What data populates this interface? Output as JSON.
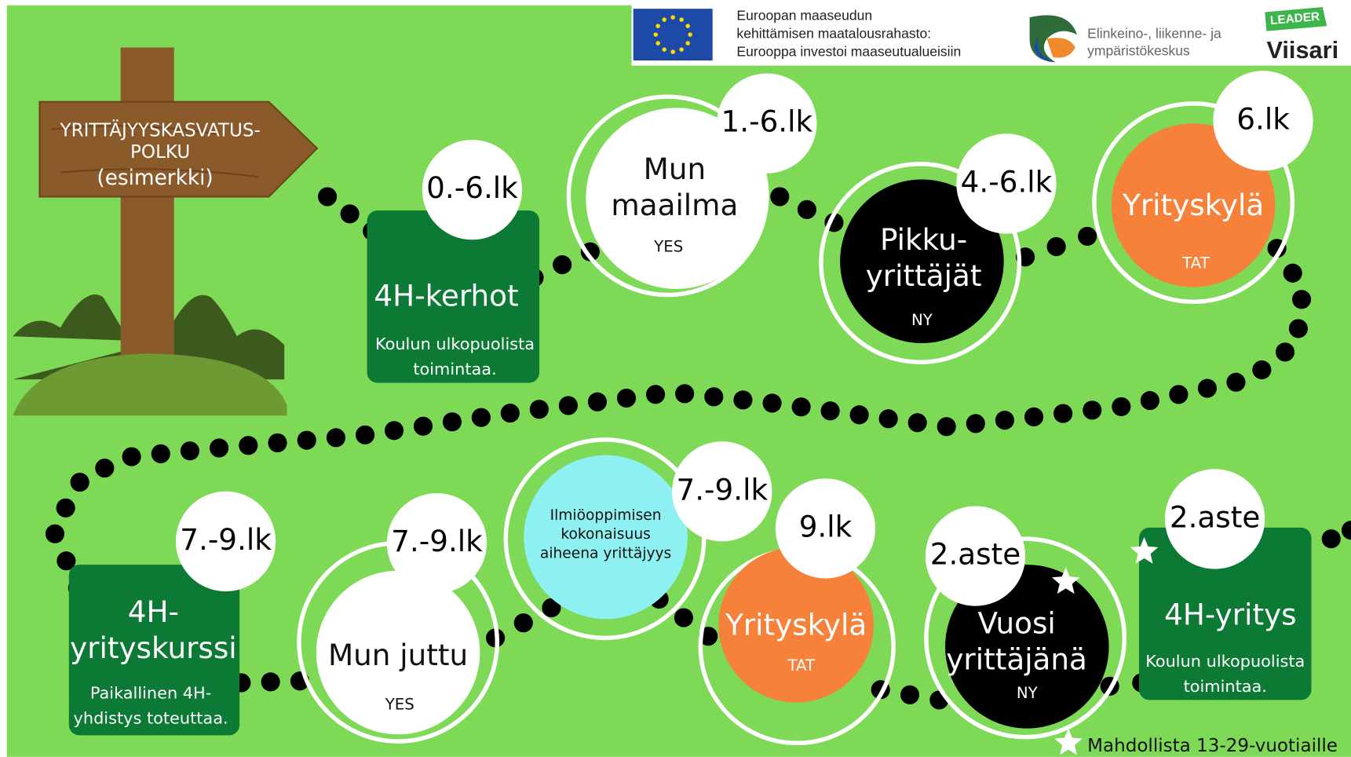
{
  "header": {
    "eu_text": [
      "Euroopan maaseudun",
      "kehittämisen maatalousrahasto:",
      "Eurooppa investoi maaseutualueisiin"
    ],
    "ely_text": [
      "Elinkeino-, liikenne- ja",
      "ympäristökeskus"
    ],
    "leader": "LEADER",
    "viisari": "Viisari"
  },
  "sign": {
    "lines": [
      "YRITTÄJYYSKASVATUS-",
      "POLKU",
      "(esimerkki)"
    ]
  },
  "nodes": [
    {
      "grade": "0.-6.lk",
      "label": [
        "4H-kerhot"
      ],
      "sub": [
        "Koulun ulkopuolista",
        "toimintaa."
      ]
    },
    {
      "grade": "1.-6.lk",
      "label": [
        "Mun",
        "maailma"
      ],
      "sub": [
        "YES"
      ]
    },
    {
      "grade": "4.-6.lk",
      "label": [
        "Pikku-",
        "yrittäjät"
      ],
      "sub": [
        "NY"
      ]
    },
    {
      "grade": "6.lk",
      "label": [
        "Yrityskylä"
      ],
      "sub": [
        "TAT"
      ]
    },
    {
      "grade": "7.-9.lk",
      "label": [
        "4H-",
        "yrityskurssi"
      ],
      "sub": [
        "Paikallinen 4H-",
        "yhdistys toteuttaa."
      ]
    },
    {
      "grade": "7.-9.lk",
      "label": [
        "Mun juttu"
      ],
      "sub": [
        "YES"
      ]
    },
    {
      "grade": "7.-9.lk",
      "label": [
        "Ilmiöoppimisen",
        "kokonaisuus",
        "aiheena yrittäjyys"
      ],
      "sub": []
    },
    {
      "grade": "9.lk",
      "label": [
        "Yrityskylä"
      ],
      "sub": [
        "TAT"
      ]
    },
    {
      "grade": "2.aste",
      "label": [
        "Vuosi",
        "yrittäjänä"
      ],
      "sub": [
        "NY"
      ]
    },
    {
      "grade": "2.aste",
      "label": [
        "4H-yritys"
      ],
      "sub": [
        "Koulun ulkopuolista",
        "toimintaa."
      ]
    }
  ],
  "footnote": "Mahdollista 13-29-vuotiaille"
}
